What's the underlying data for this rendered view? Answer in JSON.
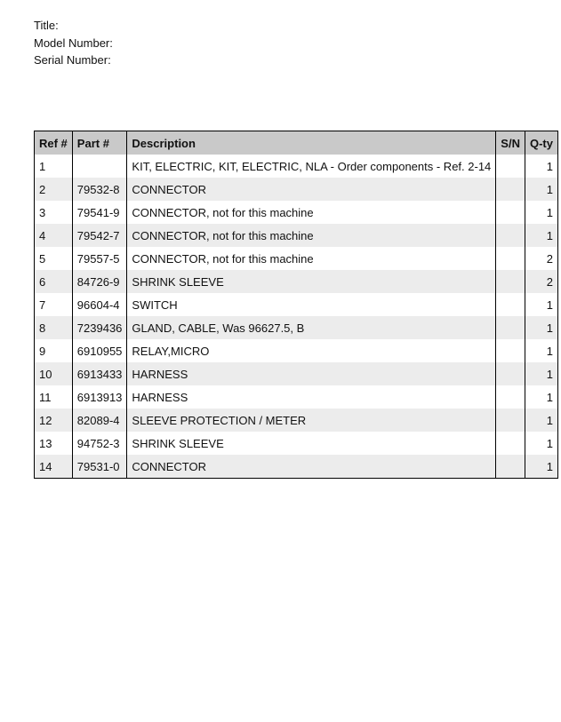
{
  "header": {
    "title_label": "Title:",
    "model_label": "Model Number:",
    "serial_label": "Serial Number:"
  },
  "table": {
    "columns": [
      "Ref #",
      "Part #",
      "Description",
      "S/N",
      "Q-ty"
    ],
    "rows": [
      [
        "1",
        "",
        "KIT, ELECTRIC, KIT, ELECTRIC, NLA - Order components - Ref. 2-14",
        "",
        "1"
      ],
      [
        "2",
        "79532-8",
        "CONNECTOR",
        "",
        "1"
      ],
      [
        "3",
        "79541-9",
        "CONNECTOR, not for this machine",
        "",
        "1"
      ],
      [
        "4",
        "79542-7",
        "CONNECTOR, not for this machine",
        "",
        "1"
      ],
      [
        "5",
        "79557-5",
        "CONNECTOR, not for this machine",
        "",
        "2"
      ],
      [
        "6",
        "84726-9",
        "SHRINK SLEEVE",
        "",
        "2"
      ],
      [
        "7",
        "96604-4",
        "SWITCH",
        "",
        "1"
      ],
      [
        "8",
        "7239436",
        "GLAND, CABLE, Was 96627.5, B",
        "",
        "1"
      ],
      [
        "9",
        "6910955",
        "RELAY,MICRO",
        "",
        "1"
      ],
      [
        "10",
        "6913433",
        "HARNESS",
        "",
        "1"
      ],
      [
        "11",
        "6913913",
        "HARNESS",
        "",
        "1"
      ],
      [
        "12",
        "82089-4",
        "SLEEVE PROTECTION / METER",
        "",
        "1"
      ],
      [
        "13",
        "94752-3",
        "SHRINK SLEEVE",
        "",
        "1"
      ],
      [
        "14",
        "79531-0",
        "CONNECTOR",
        "",
        "1"
      ]
    ]
  }
}
